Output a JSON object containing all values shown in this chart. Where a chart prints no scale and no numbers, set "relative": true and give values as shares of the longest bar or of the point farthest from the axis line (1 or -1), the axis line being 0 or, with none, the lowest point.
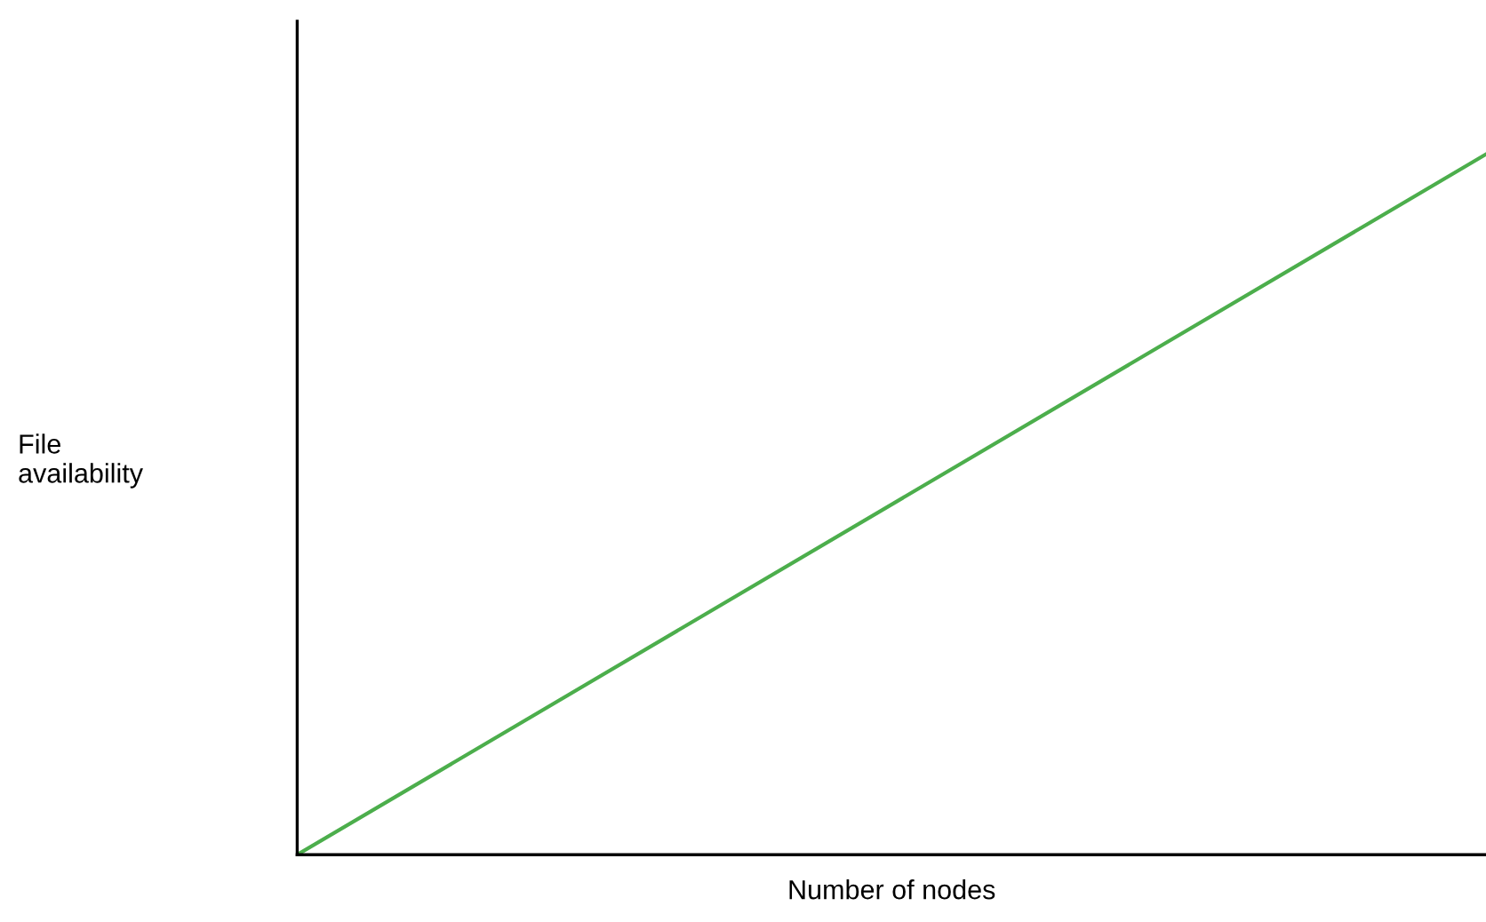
{
  "chart_data": {
    "type": "line",
    "relative": true,
    "xlabel": "Number of nodes",
    "ylabel": "File\navailability",
    "categories": [
      null,
      null
    ],
    "series": [
      {
        "color": "#4cae4c",
        "values": [
          0,
          1
        ]
      }
    ],
    "marker": "none",
    "line_style": "solid"
  }
}
